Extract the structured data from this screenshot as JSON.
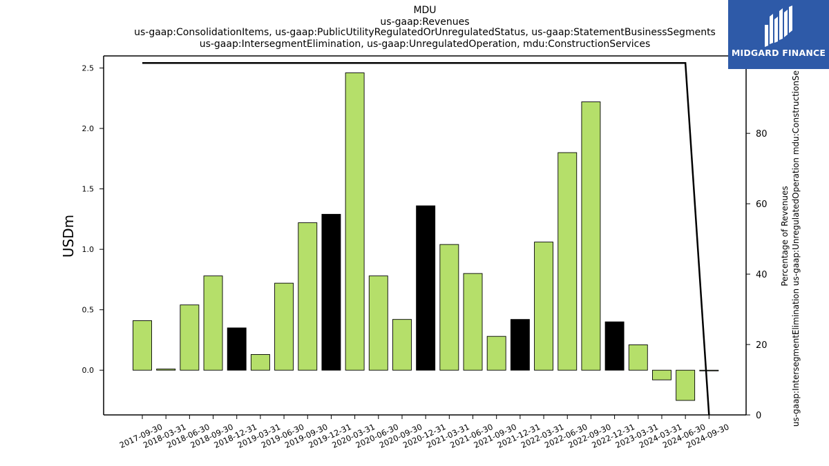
{
  "chart_data": {
    "type": "bar",
    "title_lines": [
      "MDU",
      "us-gaap:Revenues",
      "us-gaap:ConsolidationItems, us-gaap:PublicUtilityRegulatedOrUnregulatedStatus, us-gaap:StatementBusinessSegments",
      "us-gaap:IntersegmentElimination, us-gaap:UnregulatedOperation, mdu:ConstructionServices"
    ],
    "ylabel": "USDm",
    "ylabel_right_lines": [
      "Percentage of Revenues",
      "us-gaap:IntersegmentElimination us-gaap:UnregulatedOperation mdu:ConstructionSe"
    ],
    "categories": [
      "2017-09-30",
      "2018-03-31",
      "2018-06-30",
      "2018-09-30",
      "2018-12-31",
      "2019-03-31",
      "2019-06-30",
      "2019-09-30",
      "2019-12-31",
      "2020-03-31",
      "2020-06-30",
      "2020-09-30",
      "2020-12-31",
      "2021-03-31",
      "2021-06-30",
      "2021-09-30",
      "2021-12-31",
      "2022-03-31",
      "2022-06-30",
      "2022-09-30",
      "2022-12-31",
      "2023-03-31",
      "2024-03-31",
      "2024-06-30",
      "2024-09-30"
    ],
    "values": [
      0.41,
      0.01,
      0.54,
      0.78,
      0.35,
      0.13,
      0.72,
      1.22,
      1.29,
      2.46,
      0.78,
      0.42,
      1.36,
      1.04,
      0.8,
      0.28,
      0.42,
      1.06,
      1.8,
      2.22,
      0.4,
      0.21,
      -0.08,
      -0.25,
      0.0
    ],
    "bar_colors": [
      "#b5df6a",
      "#b5df6a",
      "#b5df6a",
      "#b5df6a",
      "#000000",
      "#b5df6a",
      "#b5df6a",
      "#b5df6a",
      "#000000",
      "#b5df6a",
      "#b5df6a",
      "#b5df6a",
      "#000000",
      "#b5df6a",
      "#b5df6a",
      "#b5df6a",
      "#000000",
      "#b5df6a",
      "#b5df6a",
      "#b5df6a",
      "#000000",
      "#b5df6a",
      "#b5df6a",
      "#b5df6a",
      "#b5df6a"
    ],
    "ylim": [
      -0.37,
      2.6
    ],
    "yticks": [
      0.0,
      0.5,
      1.0,
      1.5,
      2.0,
      2.5
    ],
    "ylim_right": [
      0,
      102
    ],
    "yticks_right": [
      0,
      20,
      40,
      60,
      80
    ],
    "percentage_line": [
      {
        "x": "2017-09-30",
        "y": 100
      },
      {
        "x": "2024-06-30",
        "y": 100
      },
      {
        "x": "2024-09-30",
        "y": 0
      }
    ],
    "grid": false
  },
  "logo": {
    "text": "MIDGARD FINANCE"
  }
}
